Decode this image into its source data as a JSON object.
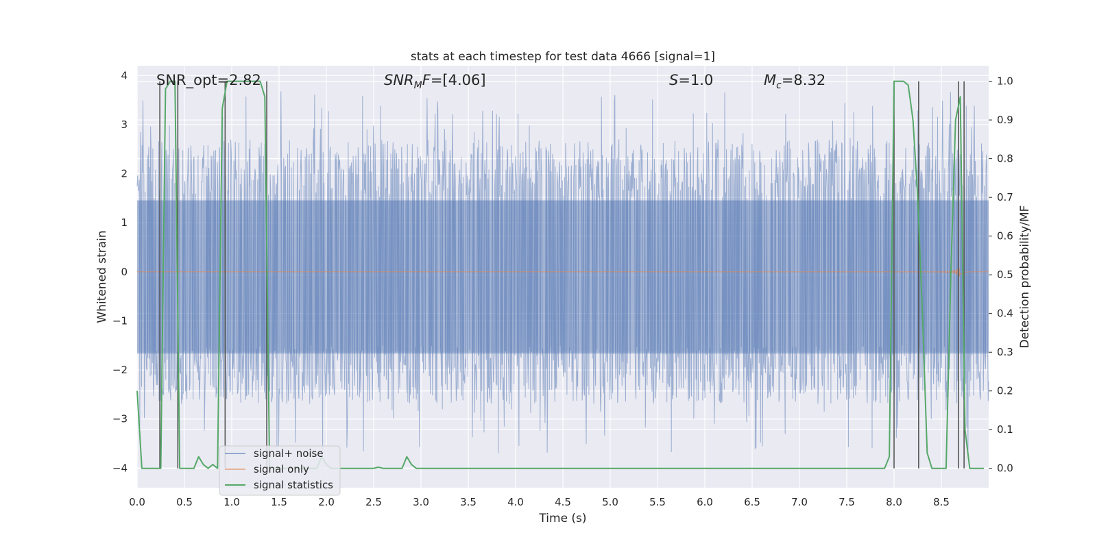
{
  "chart_data": {
    "type": "line",
    "title": "stats at each timestep for test data 4666 [signal=1]",
    "xlabel": "Time (s)",
    "ylabel": "Whitened strain",
    "y2label": "Detection probability/MF",
    "xlim": [
      0.0,
      9.0
    ],
    "ylim": [
      -4.4,
      4.2
    ],
    "y2lim": [
      -0.05,
      1.04
    ],
    "xticks": [
      "0.0",
      "0.5",
      "1.0",
      "1.5",
      "2.0",
      "2.5",
      "3.0",
      "3.5",
      "4.0",
      "4.5",
      "5.0",
      "5.5",
      "6.0",
      "6.5",
      "7.0",
      "7.5",
      "8.0",
      "8.5"
    ],
    "yticks": [
      "4",
      "3",
      "2",
      "1",
      "0",
      "−1",
      "−2",
      "−3",
      "−4"
    ],
    "y2ticks": [
      "1.0",
      "0.9",
      "0.8",
      "0.7",
      "0.6",
      "0.5",
      "0.4",
      "0.3",
      "0.2",
      "0.1",
      "0.0"
    ],
    "annotations": {
      "snr_opt": "SNR_opt=2.82",
      "snr_mf_sym": "SNR",
      "snr_mf_sub": "M",
      "snr_mf_rest": "F",
      "snr_mf_val": "=[4.06]",
      "s_sym": "S",
      "s_val": "=1.0",
      "mc_sym": "M",
      "mc_sub": "c",
      "mc_val": "=8.32"
    },
    "legend": {
      "position": "lower-left",
      "entries": [
        "signal+ noise",
        "signal only",
        "signal statistics"
      ]
    },
    "series": [
      {
        "name": "signal+ noise",
        "color": "#4c72b0",
        "kind": "noise",
        "envelope": 2.6
      },
      {
        "name": "signal only",
        "color": "#dd8452",
        "kind": "chirp",
        "t_merge": 8.7,
        "peak": 0.35
      },
      {
        "name": "signal statistics",
        "color": "#55a868",
        "axis": "right",
        "x": [
          0.0,
          0.05,
          0.1,
          0.15,
          0.2,
          0.25,
          0.3,
          0.35,
          0.4,
          0.45,
          0.5,
          0.55,
          0.6,
          0.65,
          0.7,
          0.75,
          0.8,
          0.85,
          0.9,
          0.95,
          1.0,
          1.1,
          1.2,
          1.3,
          1.35,
          1.4,
          1.45,
          1.5,
          1.6,
          1.7,
          1.75,
          1.8,
          1.85,
          1.9,
          1.95,
          2.0,
          2.05,
          2.1,
          2.2,
          2.3,
          2.4,
          2.5,
          2.55,
          2.6,
          2.7,
          2.8,
          2.85,
          2.9,
          2.95,
          3.0,
          3.1,
          3.5,
          4.0,
          5.0,
          6.0,
          7.0,
          7.5,
          7.9,
          7.95,
          8.0,
          8.05,
          8.1,
          8.15,
          8.2,
          8.25,
          8.3,
          8.35,
          8.4,
          8.45,
          8.5,
          8.55,
          8.6,
          8.65,
          8.7,
          8.75,
          8.8,
          8.85,
          8.9,
          8.95
        ],
        "y": [
          0.2,
          0.0,
          0.0,
          0.0,
          0.0,
          0.0,
          0.98,
          1.0,
          1.0,
          0.0,
          0.0,
          0.0,
          0.0,
          0.03,
          0.01,
          0.0,
          0.01,
          0.0,
          0.93,
          1.0,
          1.0,
          1.0,
          1.0,
          1.0,
          0.96,
          0.0,
          0.0,
          0.0,
          0.0,
          0.0,
          0.0,
          0.0,
          0.0,
          0.0,
          0.03,
          0.01,
          0.0,
          0.0,
          0.0,
          0.0,
          0.0,
          0.0,
          0.003,
          0.0,
          0.0,
          0.0,
          0.03,
          0.01,
          0.0,
          0.0,
          0.0,
          0.0,
          0.0,
          0.0,
          0.0,
          0.0,
          0.0,
          0.0,
          0.03,
          1.0,
          1.0,
          1.0,
          0.99,
          0.9,
          0.7,
          0.4,
          0.04,
          0.0,
          0.0,
          0.0,
          0.0,
          0.5,
          0.9,
          0.96,
          0.1,
          0.0,
          0.0,
          0.0,
          0.0
        ]
      },
      {
        "name": "detection markers",
        "color": "#555555",
        "kind": "vlines",
        "x": [
          0.24,
          0.43,
          0.93,
          1.37,
          8.0,
          8.26,
          8.68,
          8.74
        ]
      }
    ]
  }
}
